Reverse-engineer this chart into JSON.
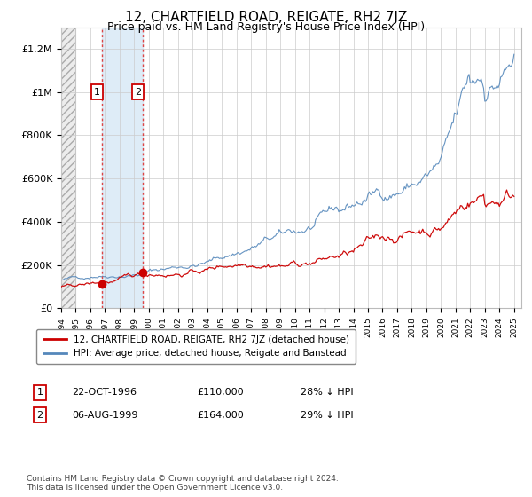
{
  "title": "12, CHARTFIELD ROAD, REIGATE, RH2 7JZ",
  "subtitle": "Price paid vs. HM Land Registry's House Price Index (HPI)",
  "title_fontsize": 11,
  "subtitle_fontsize": 9,
  "ylabel_ticks": [
    "£0",
    "£200K",
    "£400K",
    "£600K",
    "£800K",
    "£1M",
    "£1.2M"
  ],
  "ytick_values": [
    0,
    200000,
    400000,
    600000,
    800000,
    1000000,
    1200000
  ],
  "ylim": [
    0,
    1300000
  ],
  "xlim_start": 1994.0,
  "xlim_end": 2025.5,
  "xticks": [
    1994,
    1995,
    1996,
    1997,
    1998,
    1999,
    2000,
    2001,
    2002,
    2003,
    2004,
    2005,
    2006,
    2007,
    2008,
    2009,
    2010,
    2011,
    2012,
    2013,
    2014,
    2015,
    2016,
    2017,
    2018,
    2019,
    2020,
    2021,
    2022,
    2023,
    2024,
    2025
  ],
  "hpi_color": "#5588bb",
  "price_color": "#cc0000",
  "marker_color": "#cc0000",
  "dashed_line_color": "#dd4444",
  "transaction1_x": 1996.8,
  "transaction1_y": 110000,
  "transaction2_x": 1999.6,
  "transaction2_y": 164000,
  "legend_items": [
    "12, CHARTFIELD ROAD, REIGATE, RH2 7JZ (detached house)",
    "HPI: Average price, detached house, Reigate and Banstead"
  ],
  "table_rows": [
    [
      "1",
      "22-OCT-1996",
      "£110,000",
      "28% ↓ HPI"
    ],
    [
      "2",
      "06-AUG-1999",
      "£164,000",
      "29% ↓ HPI"
    ]
  ],
  "footnote": "Contains HM Land Registry data © Crown copyright and database right 2024.\nThis data is licensed under the Open Government Licence v3.0.",
  "bg_color": "#ffffff",
  "plot_bg_color": "#ffffff",
  "grid_color": "#cccccc",
  "hatch_end": 1995.0,
  "shade_start": 1996.8,
  "shade_end": 1999.6
}
